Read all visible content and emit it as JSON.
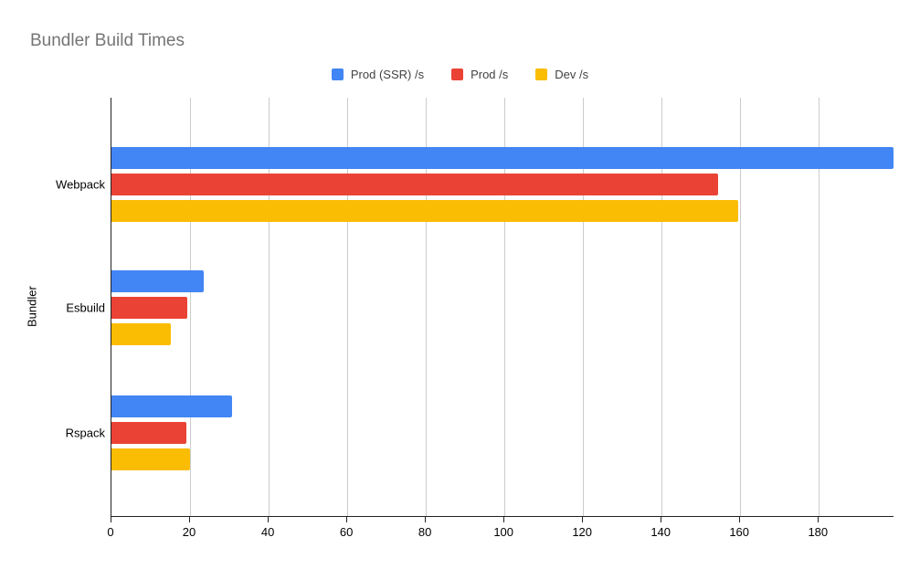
{
  "chart_data": {
    "type": "bar",
    "orientation": "horizontal",
    "title": "Bundler Build Times",
    "xlabel": "",
    "ylabel": "Bundler",
    "categories": [
      "Webpack",
      "Esbuild",
      "Rspack"
    ],
    "series": [
      {
        "name": "Prod (SSR) /s",
        "color": "#4285F4",
        "values": [
          199,
          23.5,
          30.6
        ]
      },
      {
        "name": "Prod /s",
        "color": "#EA4335",
        "values": [
          154.3,
          19.3,
          19.1
        ]
      },
      {
        "name": "Dev /s",
        "color": "#FBBC04",
        "values": [
          159.5,
          15.1,
          20
        ]
      }
    ],
    "xlim": [
      0,
      199
    ],
    "xticks": [
      0,
      20,
      40,
      60,
      80,
      100,
      120,
      140,
      160,
      180
    ],
    "grid": "vertical",
    "legend_position": "top-center",
    "colors": {
      "title": "#757575",
      "legend_text": "#424242",
      "axis_text": "#000000",
      "gridline": "#cccccc",
      "axis_line": "#222222",
      "background": "#ffffff"
    }
  }
}
